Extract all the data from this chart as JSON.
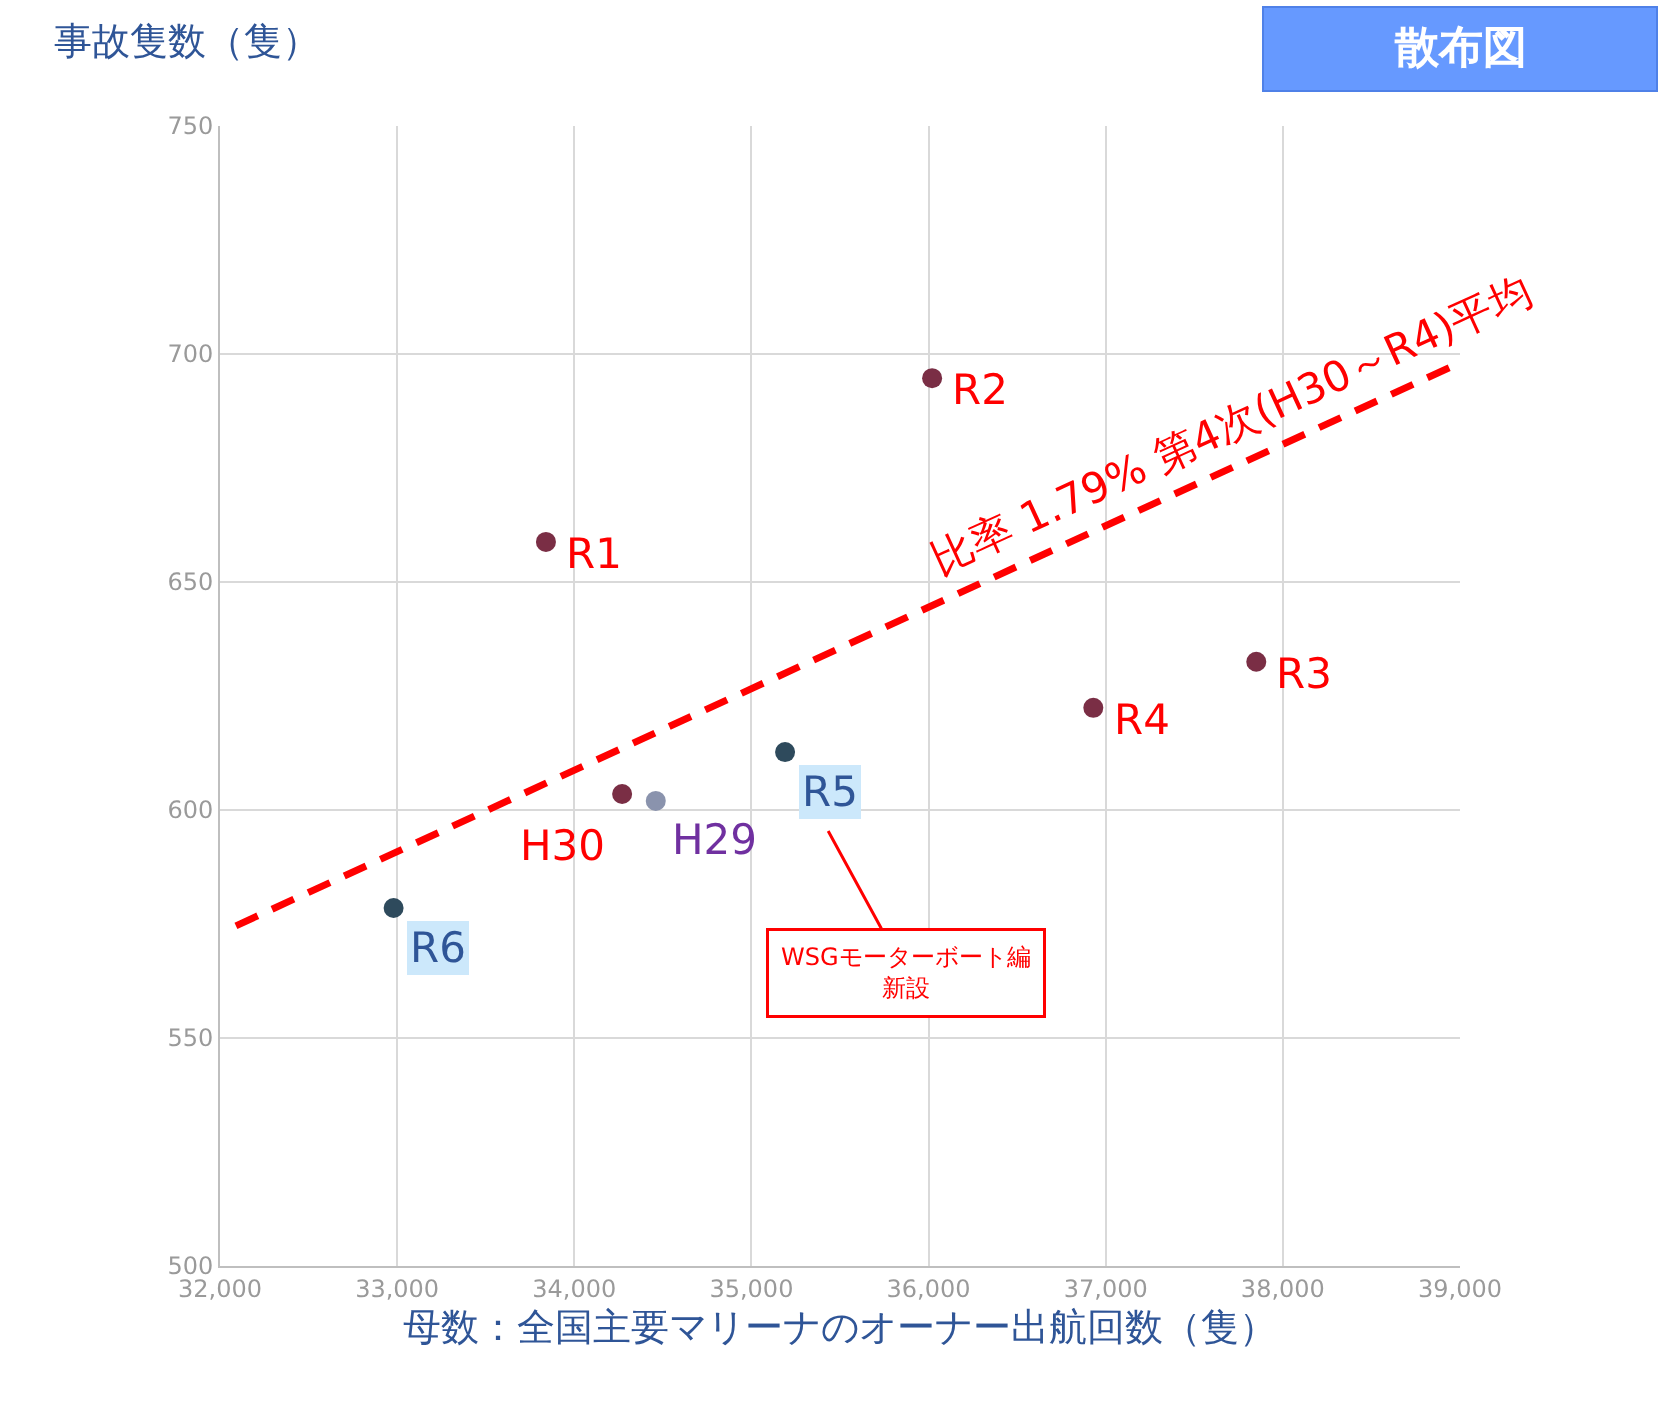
{
  "chart_data": {
    "type": "scatter",
    "ylabel": "事故隻数（隻）",
    "xlabel": "母数：全国主要マリーナのオーナー出航回数（隻）",
    "xlim": [
      32000,
      39000
    ],
    "ylim": [
      500,
      750
    ],
    "xticks": [
      {
        "value": 32000,
        "label": "32,000"
      },
      {
        "value": 33000,
        "label": "33,000"
      },
      {
        "value": 34000,
        "label": "34,000"
      },
      {
        "value": 35000,
        "label": "35,000"
      },
      {
        "value": 36000,
        "label": "36,000"
      },
      {
        "value": 37000,
        "label": "37,000"
      },
      {
        "value": 38000,
        "label": "38,000"
      },
      {
        "value": 39000,
        "label": "39,000"
      }
    ],
    "yticks": [
      500,
      550,
      600,
      650,
      700,
      750
    ],
    "grid": true,
    "marker": "circle",
    "series": [
      {
        "color": "#7a2e45",
        "x": [
          33840,
          36020,
          37850,
          36930
        ],
        "values": [
          658.8,
          694.7,
          632.5,
          622.4
        ],
        "value_labels": [
          "R1",
          "R2",
          "R3",
          "R4"
        ]
      },
      {
        "color": "#7a2e45",
        "x": [
          34270
        ],
        "values": [
          603.5
        ],
        "value_labels": [
          "H30"
        ]
      },
      {
        "color": "#8a93ad",
        "x": [
          34460
        ],
        "values": [
          602
        ],
        "value_labels": [
          "H29"
        ]
      },
      {
        "color": "#2e4a5c",
        "x": [
          35190,
          32980
        ],
        "values": [
          612.7,
          578.5
        ],
        "value_labels": [
          "R5",
          "R6"
        ]
      },
      {
        "type": "line",
        "color": "#ff0000",
        "line_style": "dashed",
        "marker": "none",
        "x": [
          32090,
          38940
        ],
        "values": [
          574.6,
          697
        ]
      }
    ],
    "annotations": [
      "散布図",
      {
        "text": "比率 1.79% 第4次(H30～R4)平均",
        "x": 37590,
        "y": 673
      },
      {
        "text": "WSGモーターボート編新設",
        "x": 35190,
        "y": 612.7
      }
    ]
  }
}
